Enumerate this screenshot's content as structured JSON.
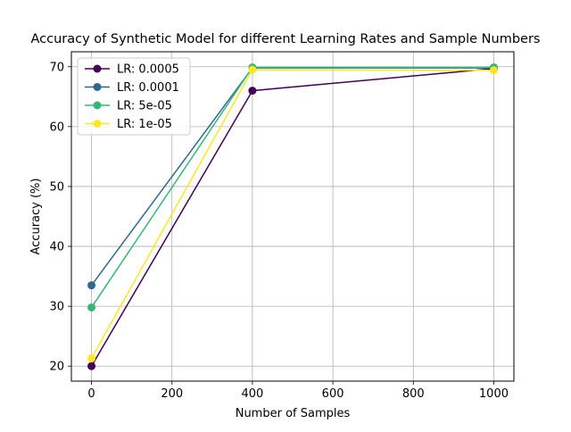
{
  "chart_data": {
    "type": "line",
    "title": "Accuracy of Synthetic Model for different Learning Rates and Sample Numbers",
    "xlabel": "Number of Samples",
    "ylabel": "Accuracy (%)",
    "x": [
      0,
      400,
      1000
    ],
    "xlim": [
      -50,
      1050
    ],
    "ylim": [
      17.5,
      72.5
    ],
    "xticks": [
      "0",
      "200",
      "400",
      "600",
      "800",
      "1000"
    ],
    "yticks": [
      "20",
      "30",
      "40",
      "50",
      "60",
      "70"
    ],
    "xtick_values": [
      0,
      200,
      400,
      600,
      800,
      1000
    ],
    "ytick_values": [
      20,
      30,
      40,
      50,
      60,
      70
    ],
    "grid": true,
    "legend_position": "top-left",
    "series": [
      {
        "name": "LR: 0.0005",
        "color": "#440154",
        "values": [
          20.0,
          66.0,
          69.7
        ]
      },
      {
        "name": "LR: 0.0001",
        "color": "#31688e",
        "values": [
          33.5,
          69.8,
          69.8
        ]
      },
      {
        "name": "LR: 5e-05",
        "color": "#35b779",
        "values": [
          29.8,
          69.9,
          69.9
        ]
      },
      {
        "name": "LR: 1e-05",
        "color": "#fde725",
        "values": [
          21.3,
          69.5,
          69.4
        ]
      }
    ]
  }
}
